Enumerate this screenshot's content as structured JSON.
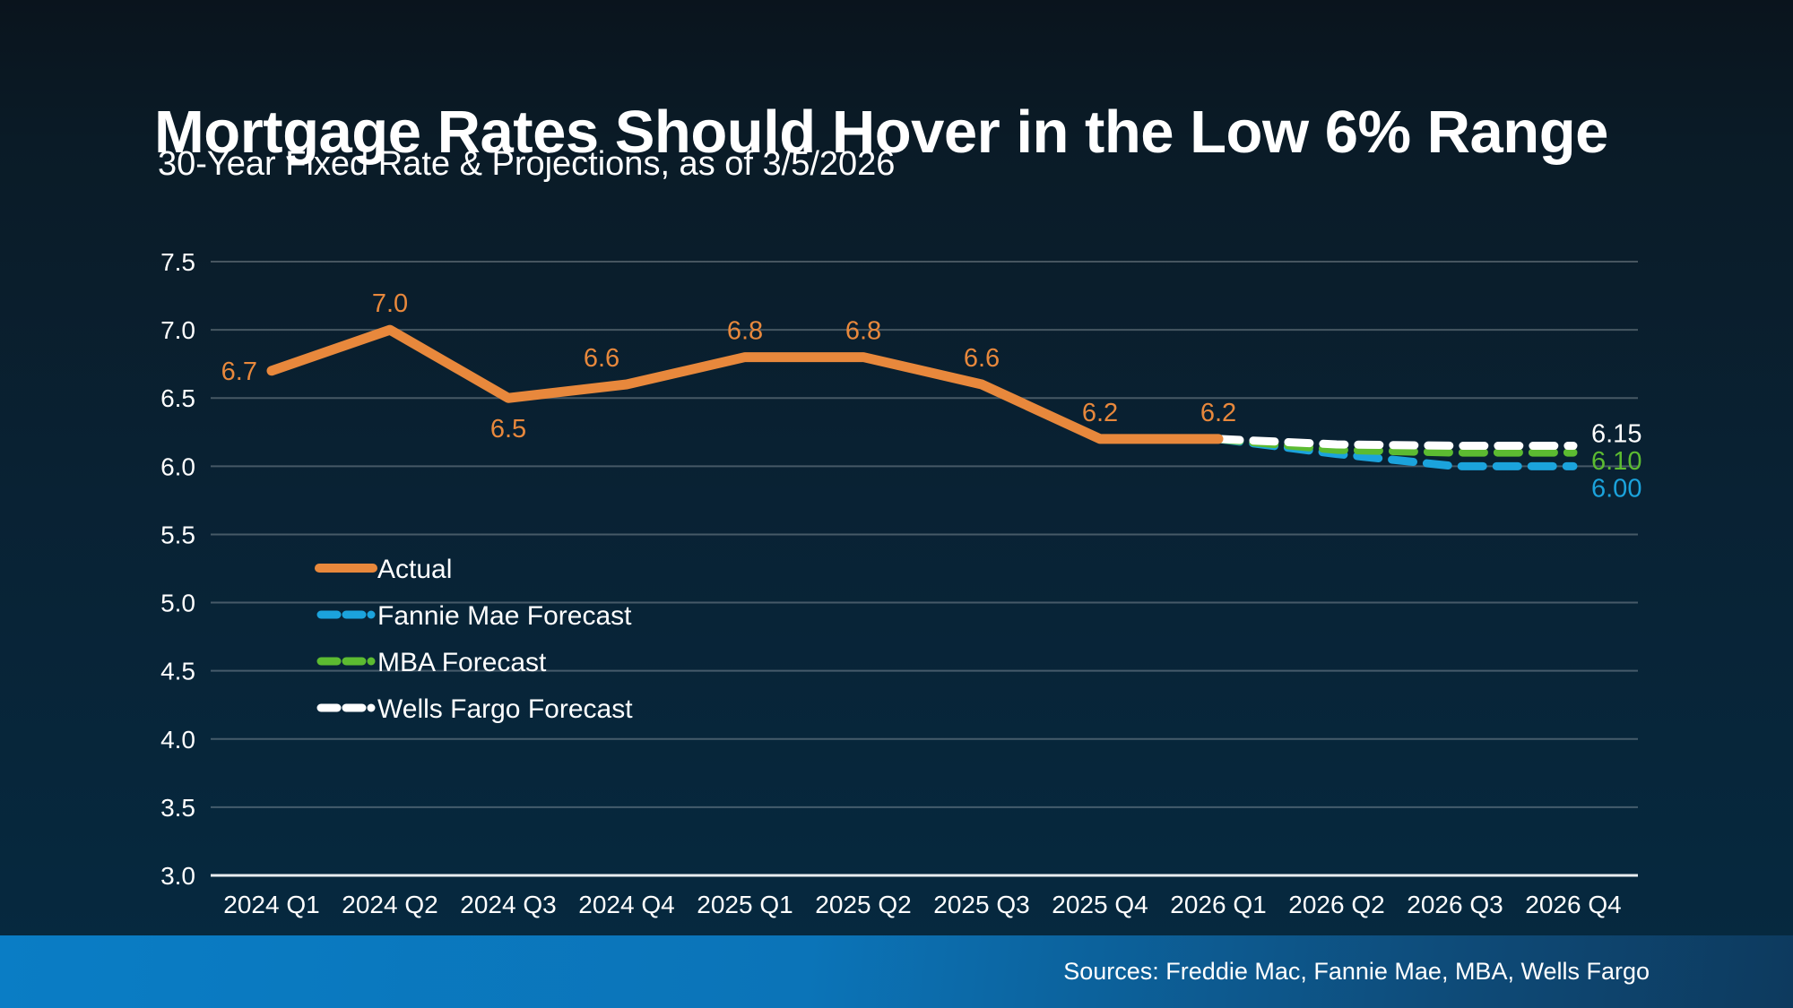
{
  "title": "Mortgage Rates Should Hover in the Low 6% Range",
  "subtitle": "30-Year Fixed Rate & Projections, as of 3/5/2026",
  "footer": {
    "sources": "Sources: Freddie Mac, Fannie Mae, MBA, Wells Fargo"
  },
  "colors": {
    "actual": "#E8883C",
    "fannie_mae": "#1BA3DC",
    "mba": "#5CBB31",
    "wells_fargo": "#FFFFFF",
    "grid": "rgba(255,255,255,0.25)",
    "axis": "#E9EEF1",
    "tick_text": "#FFFFFF",
    "footer_left": "#0A7DC5",
    "footer_right": "#0D3A5E"
  },
  "chart_data": {
    "type": "line",
    "title": "Mortgage Rates Should Hover in the Low 6% Range",
    "subtitle": "30-Year Fixed Rate & Projections, as of 3/5/2026",
    "categories": [
      "2024 Q1",
      "2024 Q2",
      "2024 Q3",
      "2024 Q4",
      "2025 Q1",
      "2025 Q2",
      "2025 Q3",
      "2025 Q4",
      "2026 Q1",
      "2026 Q2",
      "2026 Q3",
      "2026 Q4"
    ],
    "ylim": [
      3.0,
      7.5
    ],
    "ytick_step": 0.5,
    "grid": true,
    "legend_position": "inside-left-middle",
    "series": [
      {
        "id": "actual",
        "name": "Actual",
        "style": "solid",
        "color_key": "actual",
        "x_start_index": 0,
        "values": [
          6.7,
          7.0,
          6.5,
          6.6,
          6.8,
          6.8,
          6.6,
          6.2,
          6.2
        ],
        "labels": [
          "6.7",
          "7.0",
          "6.5",
          "6.6",
          "6.8",
          "6.8",
          "6.6",
          "6.2",
          "6.2"
        ],
        "label_pos": [
          "left",
          "above",
          "below",
          "above",
          "above",
          "above",
          "above",
          "above",
          "above"
        ],
        "label_dx": [
          0,
          0,
          0,
          -28,
          0,
          0,
          0,
          0,
          0
        ]
      },
      {
        "id": "fannie-mae-forecast",
        "name": "Fannie Mae Forecast",
        "style": "dashed",
        "color_key": "fannie_mae",
        "x_start_index": 8,
        "values": [
          6.2,
          6.09,
          6.0,
          6.0
        ],
        "end_label": "6.00",
        "end_label_dy": 34
      },
      {
        "id": "mba-forecast",
        "name": "MBA Forecast",
        "style": "dashed",
        "color_key": "mba",
        "x_start_index": 8,
        "values": [
          6.2,
          6.12,
          6.1,
          6.1
        ],
        "end_label": "6.10",
        "end_label_dy": 19
      },
      {
        "id": "wells-fargo-forecast",
        "name": "Wells Fargo Forecast",
        "style": "dashed",
        "color_key": "wells_fargo",
        "x_start_index": 8,
        "values": [
          6.2,
          6.16,
          6.15,
          6.15
        ],
        "end_label": "6.15",
        "end_label_dy": -4
      }
    ],
    "draw_order": [
      1,
      2,
      3,
      0
    ]
  }
}
